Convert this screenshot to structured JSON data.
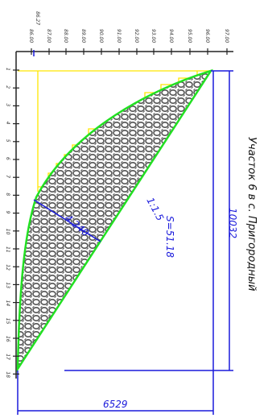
{
  "title": "Участок 6 в с. Пригородный",
  "elevation_labels": [
    "86.27",
    "86.00",
    "87.00",
    "88.00",
    "89.00",
    "90.00",
    "91.00",
    "92.00",
    "93.00",
    "94.00",
    "95.00",
    "96.00",
    "97.00"
  ],
  "stations": [
    "1",
    "2",
    "3",
    "4",
    "5",
    "6",
    "7",
    "8",
    "9",
    "10",
    "11",
    "12",
    "13",
    "14",
    "15",
    "16",
    "17",
    "18"
  ],
  "dimensions": {
    "slope_length": "4.240",
    "slope_ratio": "1:1.5",
    "area": "S=51.18",
    "height": "10032",
    "width": "6529"
  }
}
